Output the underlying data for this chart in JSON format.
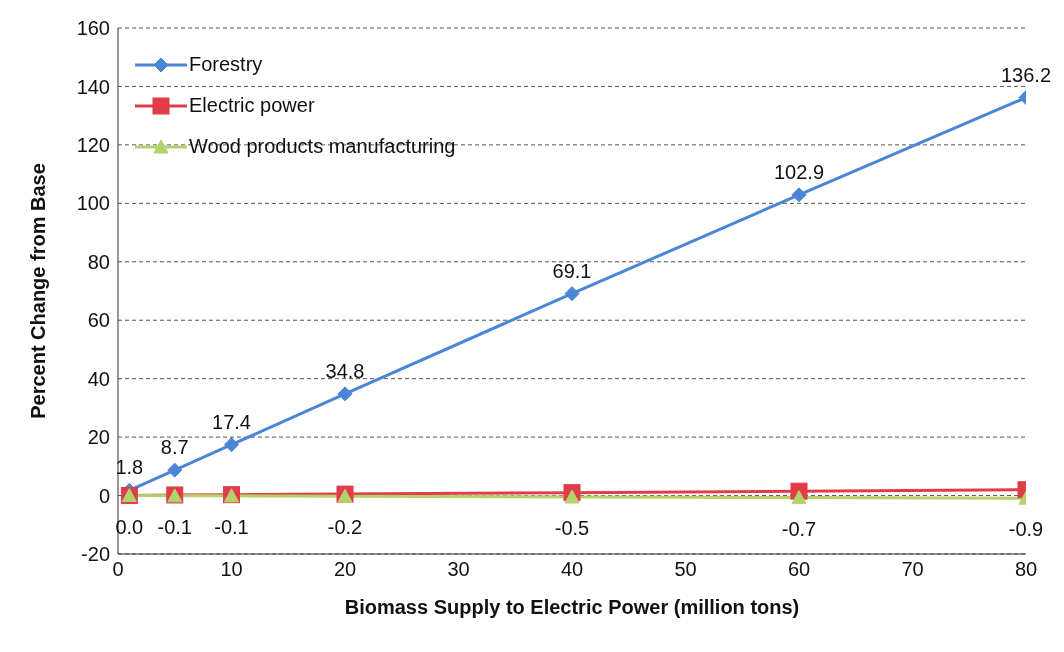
{
  "chart_data": {
    "type": "line",
    "xlabel": "Biomass Supply to Electric Power (million tons)",
    "ylabel": "Percent Change from Base",
    "x": [
      1,
      5,
      10,
      20,
      40,
      60,
      80
    ],
    "series": [
      {
        "name": "Forestry",
        "color": "#4a86d8",
        "marker": "diamond",
        "values": [
          1.8,
          8.7,
          17.4,
          34.8,
          69.1,
          102.9,
          136.2
        ],
        "value_labels": [
          "1.8",
          "8.7",
          "17.4",
          "34.8",
          "69.1",
          "102.9",
          "136.2"
        ]
      },
      {
        "name": "Electric power",
        "color": "#e03c4a",
        "marker": "square",
        "values": [
          0,
          0.2,
          0.3,
          0.5,
          1,
          1.5,
          2
        ]
      },
      {
        "name": "Wood products manufacturing",
        "color": "#b3d36a",
        "marker": "triangle",
        "values": [
          0.0,
          -0.1,
          -0.1,
          -0.2,
          -0.5,
          -0.7,
          -0.9
        ],
        "value_labels": [
          "0.0",
          "-0.1",
          "-0.1",
          "-0.2",
          "-0.5",
          "-0.7",
          "-0.9"
        ]
      }
    ],
    "xlim": [
      0,
      80
    ],
    "xticks": [
      0,
      10,
      20,
      30,
      40,
      50,
      60,
      70,
      80
    ],
    "ylim": [
      -20,
      160
    ],
    "yticks": [
      -20,
      0,
      20,
      40,
      60,
      80,
      100,
      120,
      140,
      160
    ],
    "grid": "y",
    "legend": "top left"
  }
}
